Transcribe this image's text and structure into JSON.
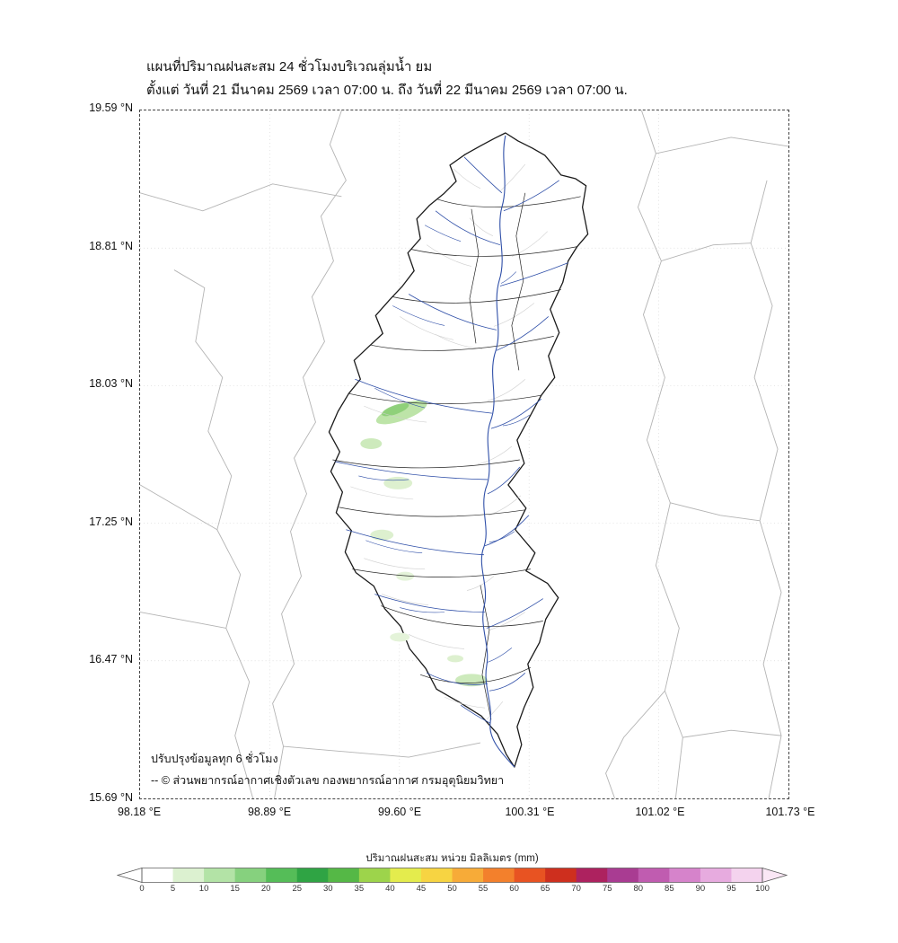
{
  "figure": {
    "title_line1": "แผนที่ปริมาณฝนสะสม 24 ชั่วโมงบริเวณลุ่มน้ำ ยม",
    "title_line2": "ตั้งแต่ วันที่ 21 มีนาคม 2569 เวลา 07:00 น. ถึง วันที่ 22 มีนาคม 2569 เวลา 07:00 น."
  },
  "axes": {
    "y_ticks": [
      "19.59 °N",
      "18.81 °N",
      "18.03 °N",
      "17.25 °N",
      "16.47 °N",
      "15.69 °N"
    ],
    "x_ticks": [
      "98.18 °E",
      "98.89 °E",
      "99.60 °E",
      "100.31 °E",
      "101.02 °E",
      "101.73 °E"
    ]
  },
  "map_notes": {
    "update_note": "ปรับปรุงข้อมูลทุก 6 ชั่วโมง",
    "credit": "-- © ส่วนพยากรณ์อากาศเชิงตัวเลข กองพยากรณ์อากาศ กรมอุตุนิยมวิทยา"
  },
  "map_colors": {
    "basin_outline": "#1a1a1a",
    "rivers": "#2f4fa8",
    "admin_boundaries": "#b4b4b4",
    "rain_light": "#ddf0cf",
    "rain_medium": "#8ccf77"
  },
  "colorbar": {
    "title": "ปริมาณฝนสะสม หน่วย มิลลิเมตร (mm)",
    "ticks": [
      "0",
      "5",
      "10",
      "15",
      "20",
      "25",
      "30",
      "35",
      "40",
      "45",
      "50",
      "55",
      "60",
      "65",
      "70",
      "75",
      "80",
      "85",
      "90",
      "95",
      "100"
    ],
    "colors": [
      "#ffffff",
      "#dcf1d0",
      "#b3e3a6",
      "#86d17e",
      "#55bd58",
      "#2fa444",
      "#55b846",
      "#9dd44b",
      "#e4ec4d",
      "#f7d442",
      "#f7ab38",
      "#f3802c",
      "#e85322",
      "#ce2f1e",
      "#ad225f",
      "#a93c92",
      "#c05cb0",
      "#d683cb",
      "#e7abdf",
      "#f4d3ee"
    ],
    "arrow_left": "#ffffff",
    "arrow_right": "#fae7f5"
  }
}
